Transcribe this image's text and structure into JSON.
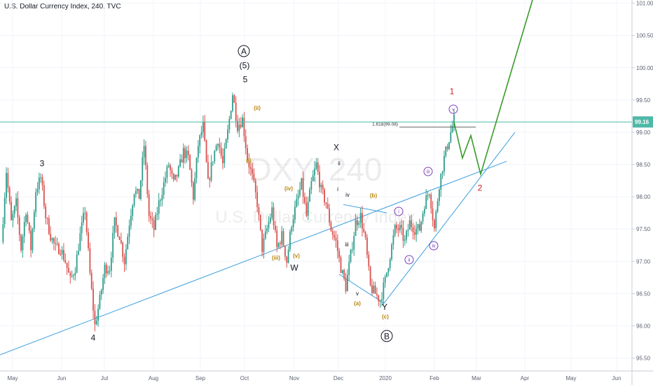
{
  "header": {
    "title": "U.S. Dollar Currency Index, 240, TVC"
  },
  "watermark": {
    "symbol": "DXY, 240",
    "name": "U.S. Dollar Currency Index"
  },
  "colors": {
    "up": "#2e9c8a",
    "down": "#d9534f",
    "trend": "#3a9fe0",
    "projection": "#3a9a2a",
    "hline": "#4fb9a8",
    "price_badge": "#4fb9a8",
    "wave_black": "#131722",
    "wave_orange": "#b8860b",
    "wave_purple": "#7b3fb8",
    "wave_red": "#cc2222"
  },
  "chart_data": {
    "type": "candlestick",
    "y_ticks": [
      "101.00",
      "100.50",
      "100.00",
      "99.50",
      "99.00",
      "98.50",
      "98.00",
      "97.50",
      "97.00",
      "96.50",
      "96.00",
      "95.50"
    ],
    "y_range": [
      95.3,
      101.05
    ],
    "x_ticks": [
      "May",
      "Jun",
      "Jul",
      "Aug",
      "Sep",
      "Oct",
      "Nov",
      "Dec",
      "2020",
      "Feb",
      "Mar",
      "Apr",
      "May",
      "Jun"
    ],
    "current_price": "99.16",
    "fib_label": "1.618(99.08)",
    "price_path": [
      [
        0,
        97.3
      ],
      [
        1,
        98.4
      ],
      [
        2,
        97.6
      ],
      [
        3,
        97.9
      ],
      [
        4,
        97.2
      ],
      [
        5,
        97.8
      ],
      [
        6,
        97.2
      ],
      [
        7,
        98.1
      ],
      [
        8,
        98.3
      ],
      [
        9,
        97.7
      ],
      [
        10,
        97.4
      ],
      [
        11,
        97.2
      ],
      [
        12,
        97.2
      ],
      [
        13,
        97.0
      ],
      [
        14,
        96.7
      ],
      [
        15,
        96.9
      ],
      [
        16,
        97.4
      ],
      [
        17,
        97.8
      ],
      [
        18,
        96.8
      ],
      [
        19,
        96.0
      ],
      [
        20,
        96.4
      ],
      [
        21,
        96.9
      ],
      [
        22,
        96.9
      ],
      [
        23,
        97.6
      ],
      [
        24,
        97.4
      ],
      [
        25,
        97.0
      ],
      [
        26,
        97.6
      ],
      [
        27,
        98.1
      ],
      [
        28,
        98.0
      ],
      [
        29,
        98.8
      ],
      [
        30,
        97.7
      ],
      [
        31,
        97.5
      ],
      [
        32,
        97.9
      ],
      [
        33,
        98.2
      ],
      [
        34,
        98.5
      ],
      [
        35,
        98.2
      ],
      [
        36,
        98.4
      ],
      [
        37,
        98.7
      ],
      [
        38,
        98.6
      ],
      [
        39,
        98.0
      ],
      [
        40,
        98.8
      ],
      [
        41,
        99.1
      ],
      [
        42,
        98.2
      ],
      [
        43,
        98.6
      ],
      [
        44,
        98.9
      ],
      [
        45,
        98.5
      ],
      [
        46,
        99.0
      ],
      [
        47,
        99.6
      ],
      [
        48,
        99.1
      ],
      [
        49,
        99.2
      ],
      [
        50,
        98.6
      ],
      [
        51,
        98.3
      ],
      [
        52,
        97.9
      ],
      [
        53,
        97.2
      ],
      [
        54,
        97.5
      ],
      [
        55,
        97.8
      ],
      [
        56,
        97.2
      ],
      [
        57,
        97.4
      ],
      [
        58,
        97.0
      ],
      [
        59,
        97.6
      ],
      [
        60,
        97.9
      ],
      [
        61,
        98.2
      ],
      [
        62,
        97.7
      ],
      [
        63,
        98.2
      ],
      [
        64,
        98.5
      ],
      [
        65,
        98.1
      ],
      [
        66,
        97.9
      ],
      [
        67,
        97.5
      ],
      [
        68,
        97.3
      ],
      [
        69,
        96.9
      ],
      [
        70,
        96.6
      ],
      [
        71,
        97.1
      ],
      [
        72,
        97.6
      ],
      [
        73,
        97.7
      ],
      [
        74,
        97.3
      ],
      [
        75,
        96.6
      ],
      [
        76,
        96.5
      ],
      [
        77,
        96.4
      ],
      [
        78,
        96.7
      ],
      [
        79,
        97.1
      ],
      [
        80,
        97.5
      ],
      [
        81,
        97.5
      ],
      [
        82,
        97.3
      ],
      [
        83,
        97.6
      ],
      [
        84,
        97.5
      ],
      [
        85,
        97.5
      ],
      [
        86,
        97.9
      ],
      [
        87,
        98.1
      ],
      [
        88,
        97.5
      ],
      [
        89,
        98.2
      ],
      [
        90,
        98.6
      ],
      [
        91,
        98.9
      ],
      [
        92,
        99.2
      ]
    ],
    "projection_path": [
      [
        99.16
      ],
      [
        98.6
      ],
      [
        98.95
      ],
      [
        98.35
      ],
      [
        101.05
      ]
    ],
    "wave_labels": [
      {
        "text": "3",
        "color": "black"
      },
      {
        "text": "4",
        "color": "black"
      },
      {
        "text": "A",
        "color": "black",
        "circled": true
      },
      {
        "text": "(5)",
        "color": "black"
      },
      {
        "text": "5",
        "color": "black"
      },
      {
        "text": "(ii)",
        "color": "orange"
      },
      {
        "text": "(i)",
        "color": "orange"
      },
      {
        "text": "(iv)",
        "color": "orange"
      },
      {
        "text": "(iii)",
        "color": "orange"
      },
      {
        "text": "(v)",
        "color": "orange"
      },
      {
        "text": "W",
        "color": "black"
      },
      {
        "text": "X",
        "color": "black"
      },
      {
        "text": "ii",
        "color": "black"
      },
      {
        "text": "i",
        "color": "black"
      },
      {
        "text": "iv",
        "color": "black"
      },
      {
        "text": "iii",
        "color": "black"
      },
      {
        "text": "v",
        "color": "black"
      },
      {
        "text": "(b)",
        "color": "orange"
      },
      {
        "text": "(a)",
        "color": "orange"
      },
      {
        "text": "Y",
        "color": "black"
      },
      {
        "text": "(c)",
        "color": "orange"
      },
      {
        "text": "B",
        "color": "black",
        "circled": true
      },
      {
        "text": "i",
        "color": "purple",
        "circled": true
      },
      {
        "text": "ii",
        "color": "purple",
        "circled": true
      },
      {
        "text": "iii",
        "color": "purple",
        "circled": true
      },
      {
        "text": "iv",
        "color": "purple",
        "circled": true
      },
      {
        "text": "v",
        "color": "purple",
        "circled": true
      },
      {
        "text": "1",
        "color": "red"
      },
      {
        "text": "2",
        "color": "red"
      }
    ]
  }
}
